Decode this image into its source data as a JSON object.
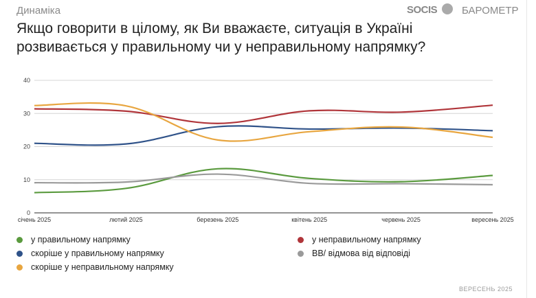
{
  "header": {
    "subtitle": "Динаміка",
    "title": "Якщо говорити в цілому, як Ви вважаєте, ситуація в Україні розвивається у правильному чи у неправильному напрямку?",
    "logo": "SOCIS",
    "brand": "БАРОМЕТР"
  },
  "footer": "ВЕРЕСЕНЬ 2025",
  "chart_data": {
    "type": "line",
    "title": "Якщо говорити в цілому, як Ви вважаєте, ситуація в Україні розвивається у правильному чи у неправильному напрямку?",
    "xlabel": "",
    "ylabel": "",
    "categories": [
      "січень 2025",
      "лютий 2025",
      "березень 2025",
      "квітень 2025",
      "червень 2025",
      "вересень 2025"
    ],
    "yticks": [
      "0",
      "10",
      "20",
      "30",
      "40"
    ],
    "ylim": [
      0,
      40
    ],
    "grid": true,
    "legend": "bottom",
    "series": [
      {
        "name": "у правильному напрямку",
        "color": "#5a9a3e",
        "values": [
          6.1,
          7.4,
          13.3,
          10.4,
          9.4,
          11.3
        ]
      },
      {
        "name": "у неправильному напрямку",
        "color": "#b0353a",
        "values": [
          31.4,
          30.7,
          27.0,
          30.8,
          30.4,
          32.5
        ]
      },
      {
        "name": "скоріше у правильному напрямку",
        "color": "#2f5289",
        "values": [
          21.0,
          20.8,
          26.0,
          25.3,
          25.6,
          24.8
        ]
      },
      {
        "name": "ВВ/ відмова від відповіді",
        "color": "#9a9a9a",
        "values": [
          9.1,
          9.3,
          11.7,
          8.9,
          8.8,
          8.5
        ]
      },
      {
        "name": "скоріше у неправильному напрямку",
        "color": "#e8a640",
        "values": [
          32.4,
          32.3,
          22.0,
          24.5,
          25.9,
          22.8
        ]
      }
    ]
  }
}
